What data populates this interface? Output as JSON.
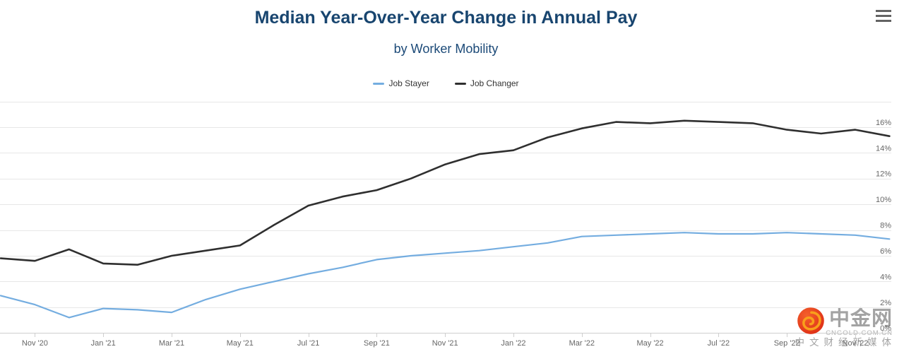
{
  "header": {
    "title": "Median Year-Over-Year Change in Annual Pay",
    "subtitle": "by Worker Mobility",
    "title_color": "#18456f"
  },
  "toolbar": {
    "menu_icon": "hamburger-menu-icon"
  },
  "chart_data": {
    "type": "line",
    "title": "Median Year-Over-Year Change in Annual Pay",
    "subtitle": "by Worker Mobility",
    "categories": [
      "Oct '20",
      "Nov '20",
      "Dec '20",
      "Jan '21",
      "Feb '21",
      "Mar '21",
      "Apr '21",
      "May '21",
      "Jun '21",
      "Jul '21",
      "Aug '21",
      "Sep '21",
      "Oct '21",
      "Nov '21",
      "Dec '21",
      "Jan '22",
      "Feb '22",
      "Mar '22",
      "Apr '22",
      "May '22",
      "Jun '22",
      "Jul '22",
      "Aug '22",
      "Sep '22",
      "Oct '22",
      "Nov '22",
      "Dec '22"
    ],
    "series": [
      {
        "name": "Job Stayer",
        "color": "#74ade0",
        "line_width": 2.2,
        "values": [
          2.9,
          2.2,
          1.2,
          1.9,
          1.8,
          1.6,
          2.6,
          3.4,
          4.0,
          4.6,
          5.1,
          5.7,
          6.0,
          6.2,
          6.4,
          6.7,
          7.0,
          7.5,
          7.6,
          7.7,
          7.8,
          7.7,
          7.7,
          7.8,
          7.7,
          7.6,
          7.3
        ]
      },
      {
        "name": "Job Changer",
        "color": "#2f2f2f",
        "line_width": 2.6,
        "values": [
          5.8,
          5.6,
          6.5,
          5.4,
          5.3,
          6.0,
          6.4,
          6.8,
          8.4,
          9.9,
          10.6,
          11.1,
          12.0,
          13.1,
          13.9,
          14.2,
          15.2,
          15.9,
          16.4,
          16.3,
          16.5,
          16.4,
          16.3,
          15.8,
          15.5,
          15.8,
          15.3
        ]
      }
    ],
    "ylim": [
      0,
      18
    ],
    "ytick_step": 2,
    "ytick_labels": [
      "0%",
      "2%",
      "4%",
      "6%",
      "8%",
      "10%",
      "12%",
      "14%",
      "16%"
    ],
    "xtick_labels": [
      "Nov '20",
      "Jan '21",
      "Mar '21",
      "May '21",
      "Jul '21",
      "Sep '21",
      "Nov '21",
      "Jan '22",
      "Mar '22",
      "May '22",
      "Jul '22",
      "Sep '22",
      "Nov '22"
    ],
    "xtick_indices": [
      1,
      3,
      5,
      7,
      9,
      11,
      13,
      15,
      17,
      19,
      21,
      23,
      25
    ],
    "grid": "horizontal",
    "legend_position": "top",
    "axis_label_color": "#666666",
    "xlabel": "",
    "ylabel": ""
  },
  "watermark": {
    "logo": "cngold-flame-logo",
    "name_cn": "中金网",
    "domain": "CNGOLD.COM.CN",
    "tagline_cn": "中文财经新媒体"
  }
}
